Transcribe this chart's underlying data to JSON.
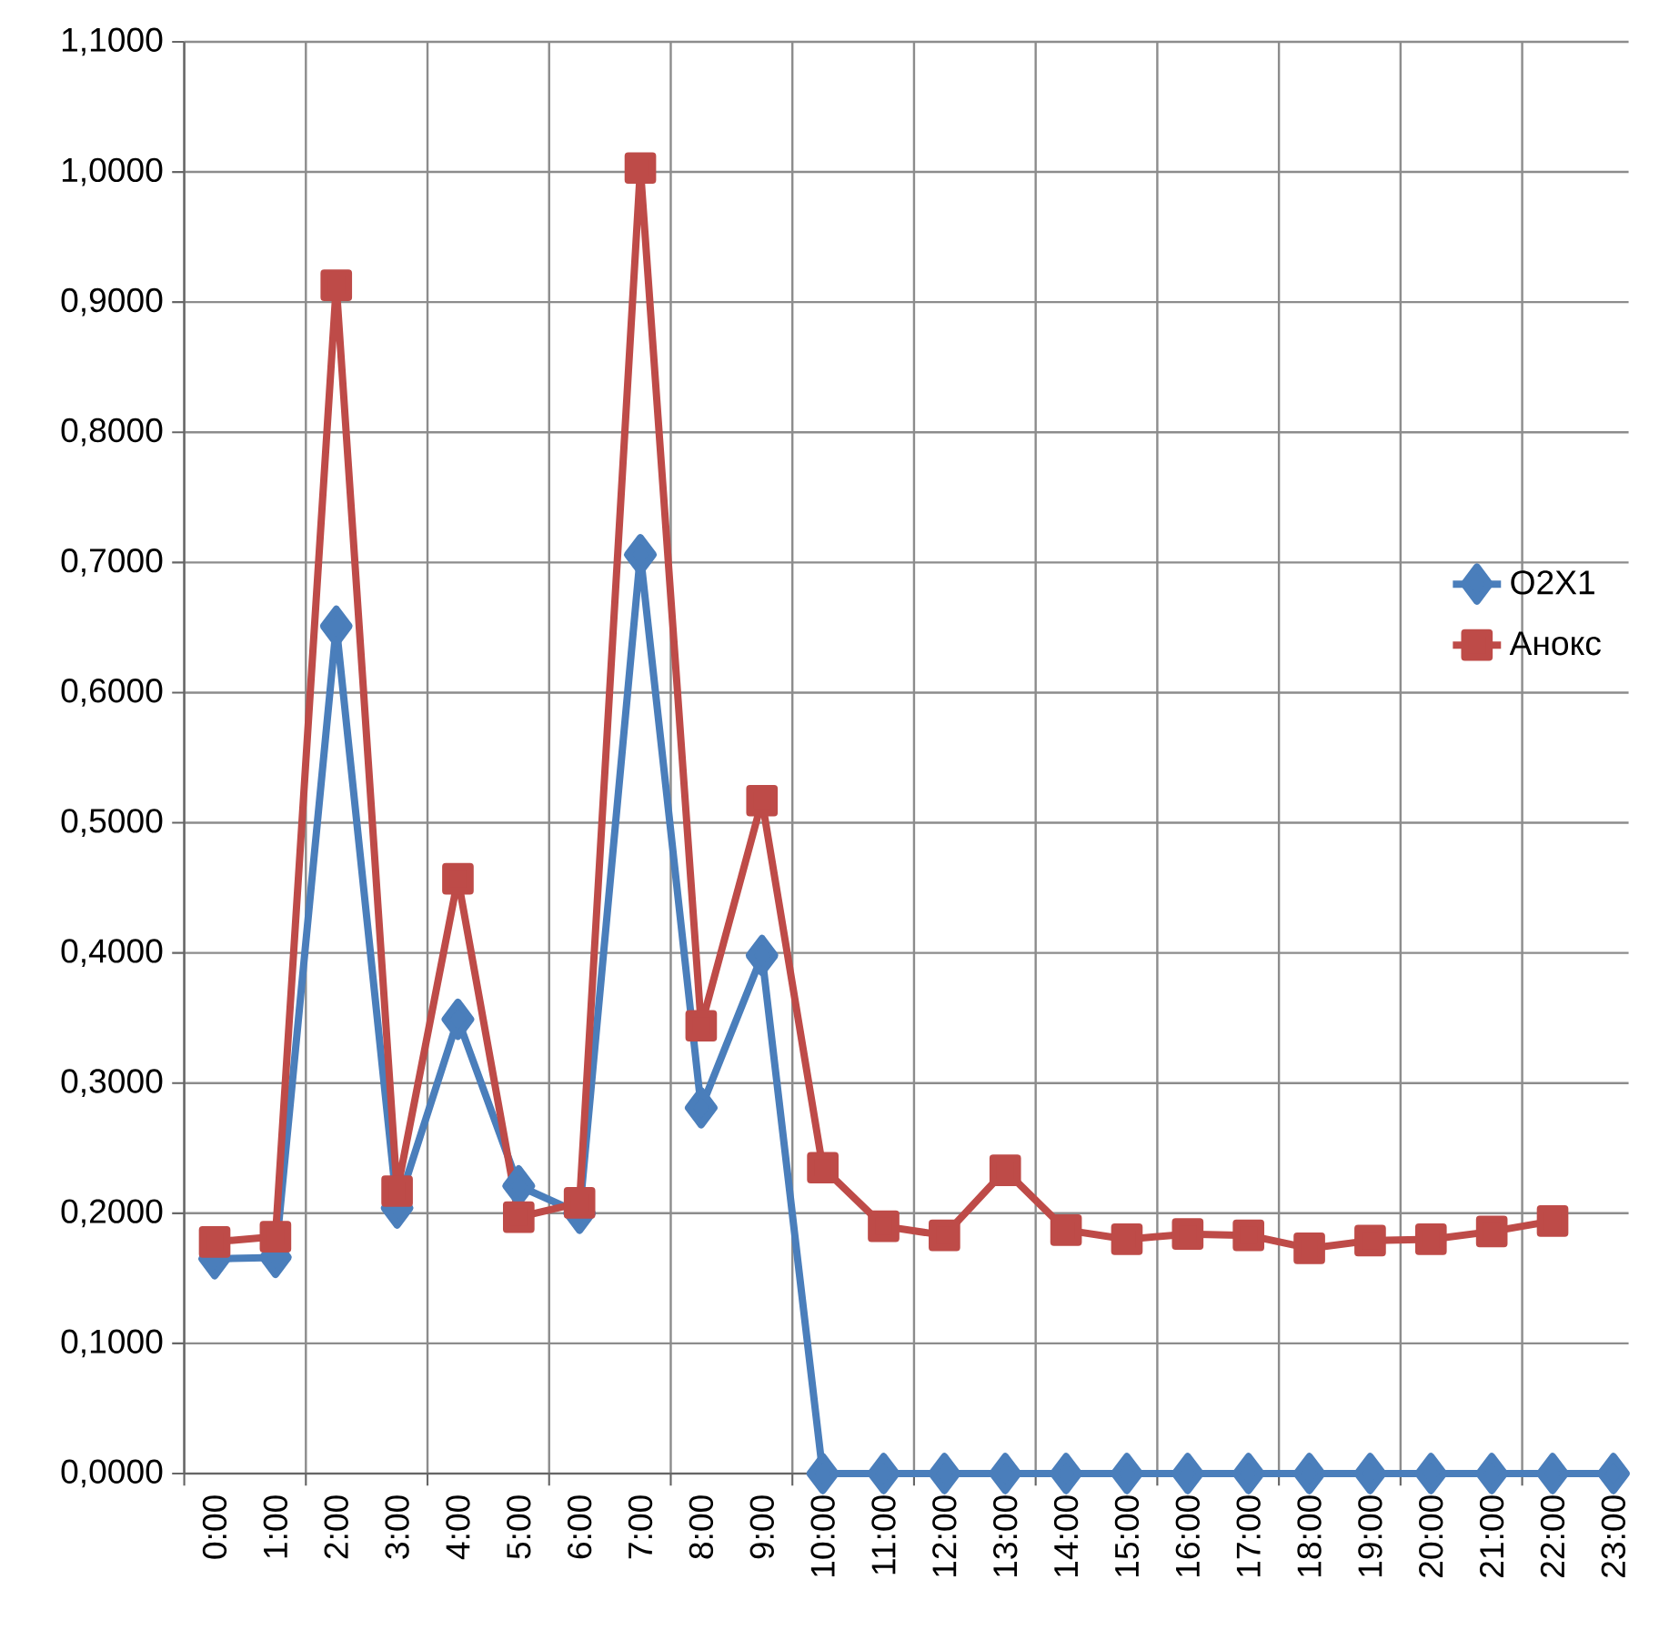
{
  "chart_data": {
    "type": "line",
    "categories": [
      "0:00",
      "1:00",
      "2:00",
      "3:00",
      "4:00",
      "5:00",
      "6:00",
      "7:00",
      "8:00",
      "9:00",
      "10:00",
      "11:00",
      "12:00",
      "13:00",
      "14:00",
      "15:00",
      "16:00",
      "17:00",
      "18:00",
      "19:00",
      "20:00",
      "21:00",
      "22:00",
      "23:00"
    ],
    "series": [
      {
        "name": "O2X1",
        "color": "#4a7ebb",
        "marker": "diamond",
        "values": [
          0.165,
          0.166,
          0.651,
          0.204,
          0.349,
          0.221,
          0.2,
          0.706,
          0.281,
          0.398,
          0,
          0,
          0,
          0,
          0,
          0,
          0,
          0,
          0,
          0,
          0,
          0,
          0,
          0
        ]
      },
      {
        "name": "Анокс",
        "color": "#be4b48",
        "marker": "square",
        "values": [
          0.178,
          0.182,
          0.913,
          0.217,
          0.457,
          0.197,
          0.208,
          1.003,
          0.344,
          0.517,
          0.235,
          0.19,
          0.183,
          0.233,
          0.187,
          0.18,
          0.184,
          0.183,
          0.173,
          0.179,
          0.18,
          0.186,
          0.194,
          null
        ]
      }
    ],
    "ylim": [
      0,
      1.1
    ],
    "yticks": [
      {
        "value": 0,
        "label": "0,0000"
      },
      {
        "value": 0.1,
        "label": "0,1000"
      },
      {
        "value": 0.2,
        "label": "0,2000"
      },
      {
        "value": 0.3,
        "label": "0,3000"
      },
      {
        "value": 0.4,
        "label": "0,4000"
      },
      {
        "value": 0.5,
        "label": "0,5000"
      },
      {
        "value": 0.6,
        "label": "0,6000"
      },
      {
        "value": 0.7,
        "label": "0,7000"
      },
      {
        "value": 0.8,
        "label": "0,8000"
      },
      {
        "value": 0.9,
        "label": "0,9000"
      },
      {
        "value": 1.0,
        "label": "1,0000"
      },
      {
        "value": 1.1,
        "label": "1,1000"
      }
    ],
    "grid": true,
    "legend": "right",
    "line_style": "solid"
  }
}
